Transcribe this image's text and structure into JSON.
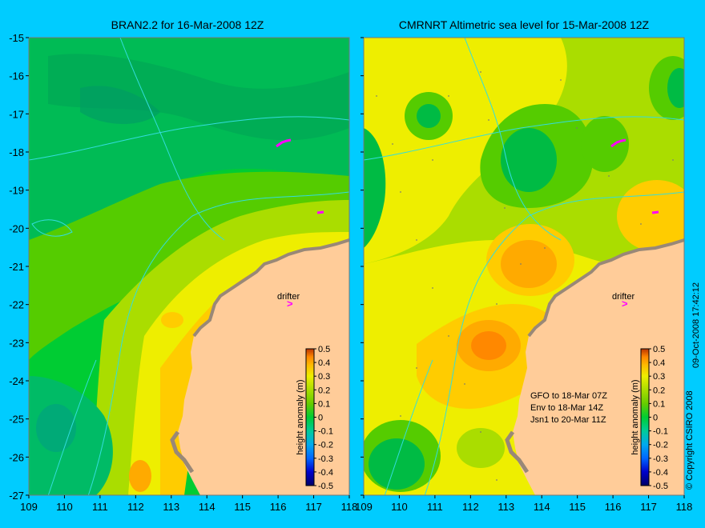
{
  "panels": [
    {
      "title": "BRAN2.2 for 16-Mar-2008 12Z",
      "drifter_label": "drifter",
      "notes": []
    },
    {
      "title": "CMRNRT Altimetric sea level  for 15-Mar-2008 12Z",
      "drifter_label": "drifter",
      "notes": [
        "GFO to 18-Mar 07Z",
        "Env to 18-Mar 14Z",
        "Jsn1 to 20-Mar 11Z"
      ]
    }
  ],
  "axes": {
    "y_ticks": [
      "-15",
      "-16",
      "-17",
      "-18",
      "-19",
      "-20",
      "-21",
      "-22",
      "-23",
      "-24",
      "-25",
      "-26",
      "-27"
    ],
    "x_ticks": [
      "109",
      "110",
      "111",
      "112",
      "113",
      "114",
      "115",
      "116",
      "117",
      "118"
    ]
  },
  "colorbar": {
    "label": "height anomaly (m)",
    "ticks": [
      "0.5",
      "0.4",
      "0.3",
      "0.2",
      "0.1",
      "0",
      "-0.1",
      "-0.2",
      "-0.3",
      "-0.4",
      "-0.5"
    ],
    "colors": [
      "#000066",
      "#0000cc",
      "#0066ff",
      "#00aaee",
      "#00cc99",
      "#00cc33",
      "#66cc00",
      "#aadd00",
      "#eeee00",
      "#ffcc00",
      "#ff9900",
      "#dd6600",
      "#bb3300"
    ]
  },
  "copyright": "© Copyright CSIRO 2008",
  "timestamp": "09-Oct-2008 17:42:12",
  "colors": {
    "background": "#00ccff",
    "land": "#ffcc99",
    "coast_rock": "#aa9988",
    "contour": "#33dddd",
    "drifter": "#ff00ff"
  }
}
